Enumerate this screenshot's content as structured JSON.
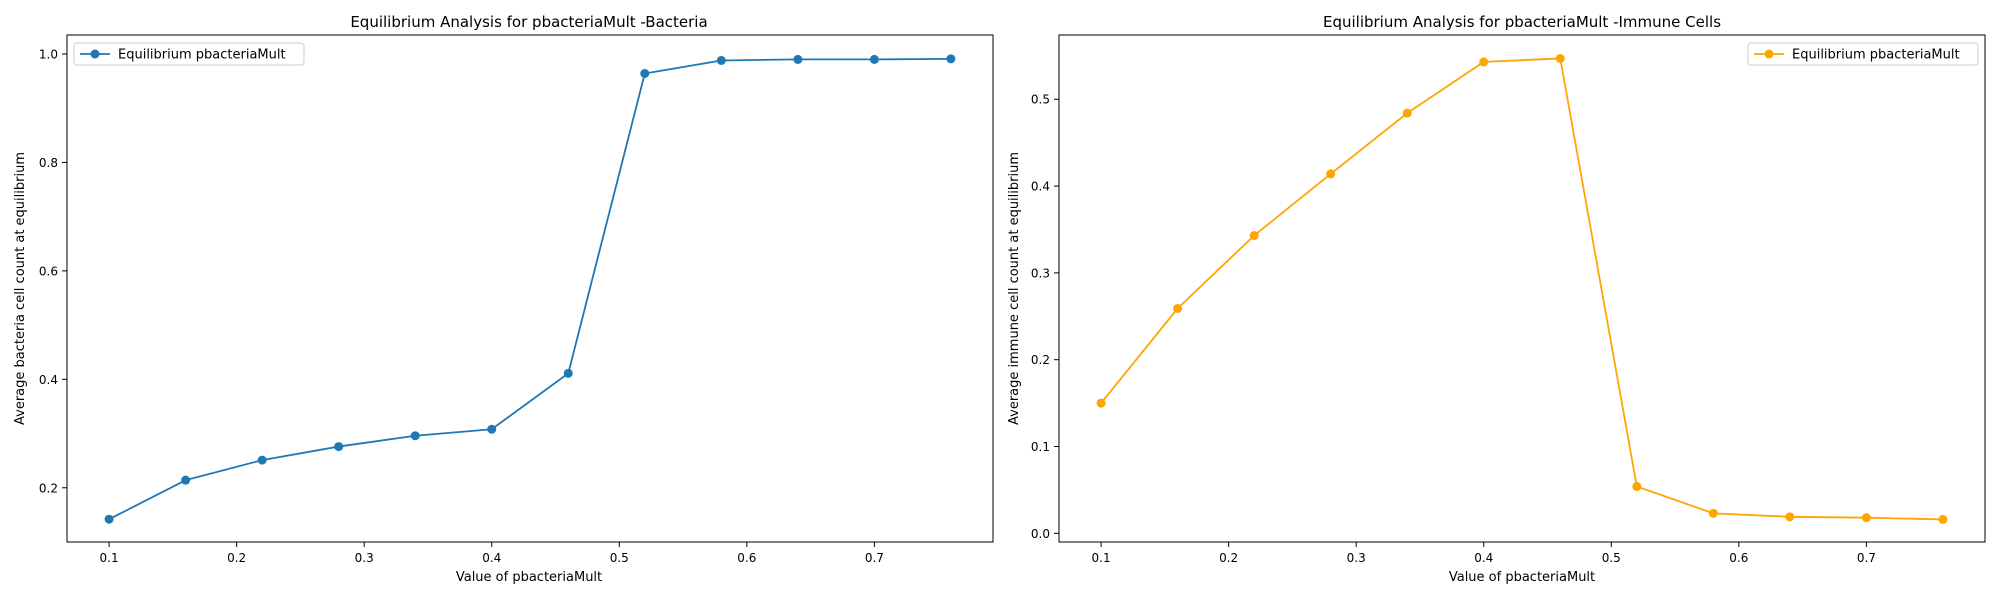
{
  "chart_data": [
    {
      "type": "line",
      "title": "Equilibrium Analysis for pbacteriaMult -Bacteria",
      "xlabel": "Value of pbacteriaMult",
      "ylabel": "Average bacteria cell count at equilibrium",
      "xlim": [
        0.067,
        0.793
      ],
      "ylim": [
        0.1,
        1.035
      ],
      "xticks": [
        0.1,
        0.2,
        0.3,
        0.4,
        0.5,
        0.6,
        0.7
      ],
      "yticks": [
        0.2,
        0.4,
        0.6,
        0.8,
        1.0
      ],
      "xtick_labels": [
        "0.1",
        "0.2",
        "0.3",
        "0.4",
        "0.5",
        "0.6",
        "0.7"
      ],
      "ytick_labels": [
        "0.2",
        "0.4",
        "0.6",
        "0.8",
        "1.0"
      ],
      "grid": false,
      "legend_position": "top-left",
      "series": [
        {
          "name": "Equilibrium pbacteriaMult",
          "color": "#1f77b4",
          "marker": "circle",
          "x": [
            0.1,
            0.16,
            0.22,
            0.28,
            0.34,
            0.4,
            0.46,
            0.52,
            0.58,
            0.64,
            0.7,
            0.76
          ],
          "y": [
            0.142,
            0.214,
            0.251,
            0.276,
            0.296,
            0.308,
            0.411,
            0.964,
            0.988,
            0.99,
            0.99,
            0.991
          ]
        }
      ]
    },
    {
      "type": "line",
      "title": "Equilibrium Analysis for pbacteriaMult -Immune Cells",
      "xlabel": "Value of pbacteriaMult",
      "ylabel": "Average immune cell count at equilibrium",
      "xlim": [
        0.067,
        0.793
      ],
      "ylim": [
        -0.01,
        0.574
      ],
      "xticks": [
        0.1,
        0.2,
        0.3,
        0.4,
        0.5,
        0.6,
        0.7
      ],
      "yticks": [
        0.0,
        0.1,
        0.2,
        0.3,
        0.4,
        0.5
      ],
      "xtick_labels": [
        "0.1",
        "0.2",
        "0.3",
        "0.4",
        "0.5",
        "0.6",
        "0.7"
      ],
      "ytick_labels": [
        "0.0",
        "0.1",
        "0.2",
        "0.3",
        "0.4",
        "0.5"
      ],
      "grid": false,
      "legend_position": "top-right",
      "series": [
        {
          "name": "Equilibrium pbacteriaMult",
          "color": "#ffa500",
          "marker": "circle",
          "x": [
            0.1,
            0.16,
            0.22,
            0.28,
            0.34,
            0.4,
            0.46,
            0.52,
            0.58,
            0.64,
            0.7,
            0.76
          ],
          "y": [
            0.15,
            0.259,
            0.343,
            0.414,
            0.484,
            0.543,
            0.547,
            0.054,
            0.023,
            0.019,
            0.018,
            0.016
          ]
        }
      ]
    }
  ]
}
